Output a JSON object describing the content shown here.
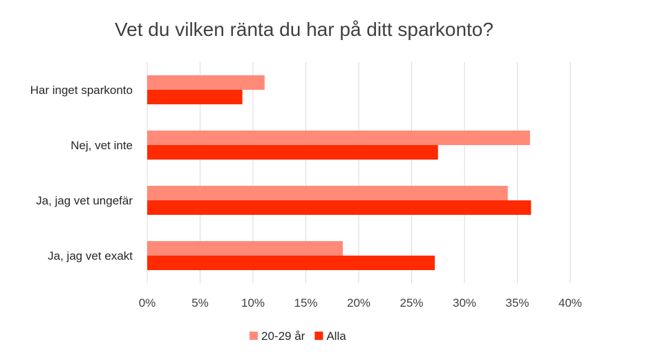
{
  "chart_data": {
    "type": "bar",
    "orientation": "horizontal",
    "title": "Vet du vilken ränta du har på ditt sparkonto?",
    "categories": [
      "Har inget sparkonto",
      "Nej, vet inte",
      "Ja, jag vet ungefär",
      "Ja, jag vet exakt"
    ],
    "series": [
      {
        "name": "20-29 år",
        "color": "#ff8a78",
        "values": [
          11.1,
          36.2,
          34.1,
          18.5
        ]
      },
      {
        "name": "Alla",
        "color": "#ff2a00",
        "values": [
          9.0,
          27.5,
          36.3,
          27.2
        ]
      }
    ],
    "xlim": [
      0,
      40
    ],
    "xticks": [
      0,
      5,
      10,
      15,
      20,
      25,
      30,
      35,
      40
    ],
    "tick_labels": [
      "0%",
      "5%",
      "10%",
      "15%",
      "20%",
      "25%",
      "30%",
      "35%",
      "40%"
    ],
    "grid": true,
    "legend": "bottom"
  }
}
